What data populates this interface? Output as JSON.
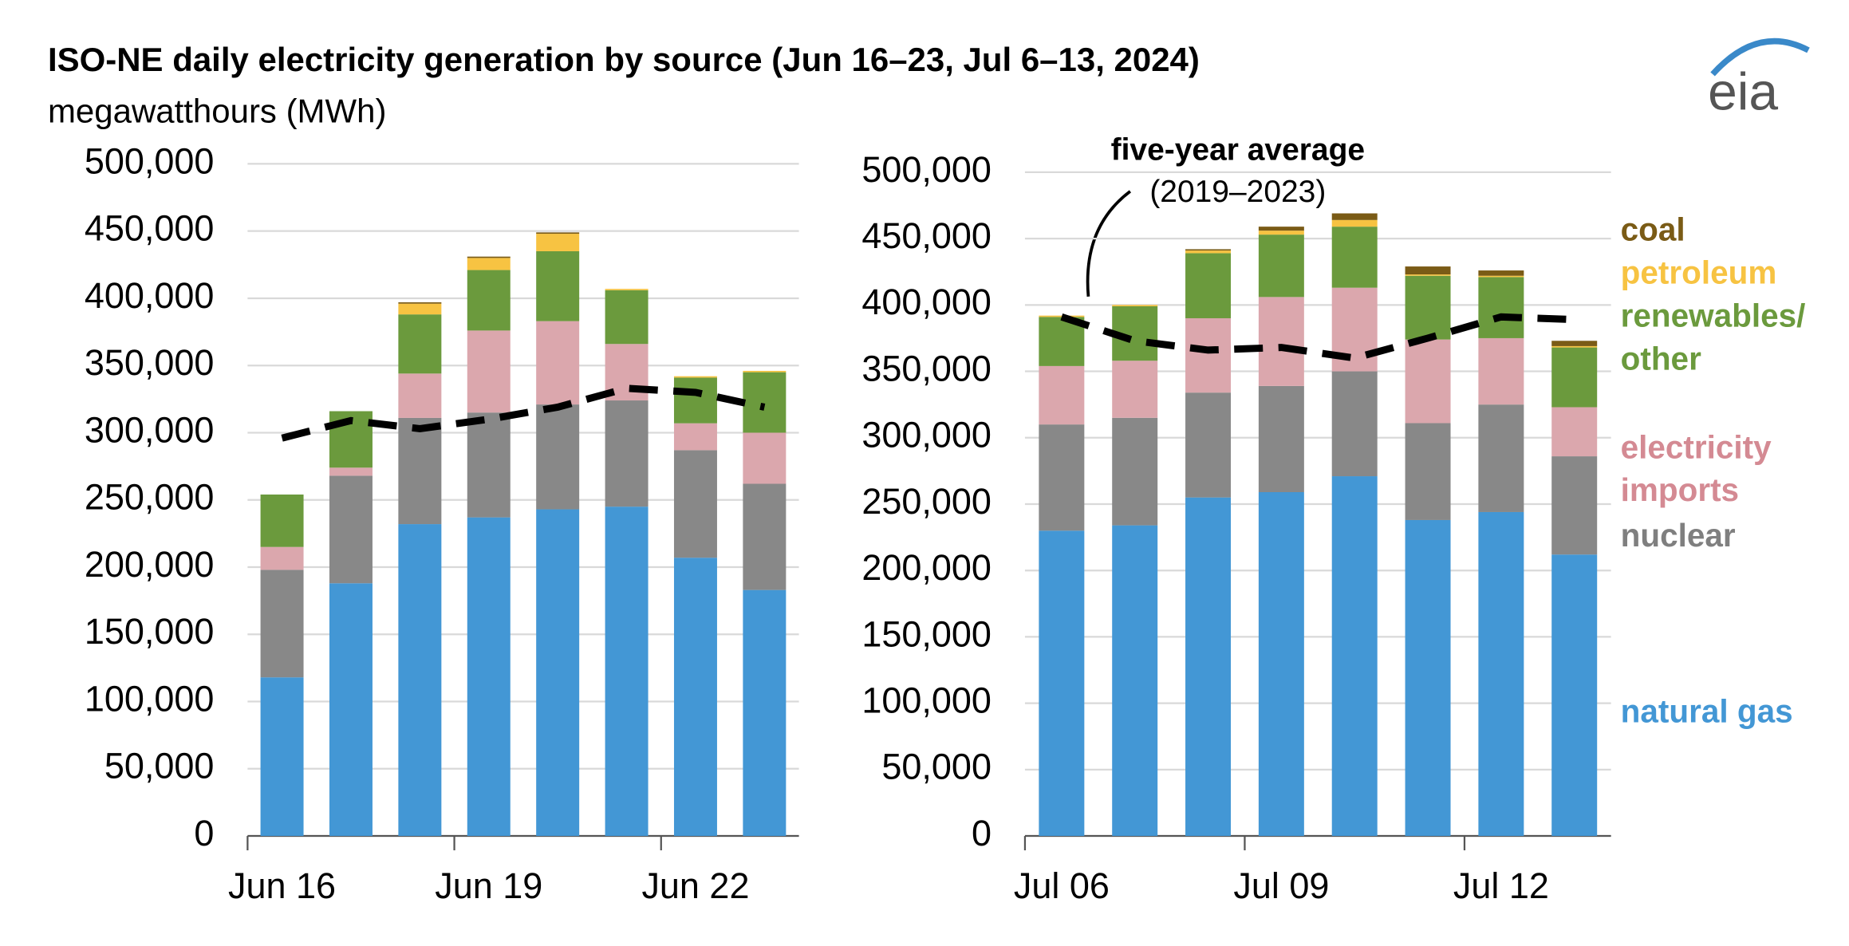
{
  "logo": "eia",
  "chart_data": [
    {
      "type": "bar",
      "stacked": true,
      "title": "ISO-NE daily electricity generation by source (Jun 16–23, Jul 6–13, 2024)",
      "y_label": "megawatthours (MWh)",
      "categories": [
        "Jun 16",
        null,
        null,
        "Jun 19",
        null,
        null,
        "Jun 22",
        null
      ],
      "ylim": [
        0,
        500000
      ],
      "yticks": [
        0,
        {
          "value": 50000,
          "label": "50,000"
        },
        {
          "value": 100000,
          "label": "100,000"
        },
        {
          "value": 150000,
          "label": "150,000"
        },
        {
          "value": 200000,
          "label": "200,000"
        },
        {
          "value": 250000,
          "label": "250,000"
        },
        {
          "value": 300000,
          "label": "300,000"
        },
        {
          "value": 350000,
          "label": "350,000"
        },
        {
          "value": 400000,
          "label": "400,000"
        },
        {
          "value": 450000,
          "label": "450,000"
        },
        {
          "value": 500000,
          "label": "500,000"
        }
      ],
      "grid": true,
      "series": [
        {
          "color": "#4397d5",
          "values": [
            118000,
            188000,
            232000,
            237000,
            243000,
            245000,
            207000,
            183000
          ]
        },
        {
          "color": "#888888",
          "values": [
            80000,
            80000,
            79000,
            78000,
            78000,
            79000,
            80000,
            79000
          ]
        },
        {
          "color": "#dba7ad",
          "values": [
            17000,
            6000,
            33000,
            61000,
            62000,
            42000,
            20000,
            38000
          ]
        },
        {
          "color": "#6b9a3d",
          "values": [
            39000,
            42000,
            44000,
            45000,
            52000,
            40000,
            34000,
            45000
          ]
        },
        {
          "color": "#f7c342",
          "values": [
            0,
            0,
            8000,
            9000,
            13000,
            1000,
            1000,
            1000
          ]
        },
        {
          "color": "#7a5b16",
          "values": [
            0,
            0,
            1000,
            1000,
            1000,
            0,
            0,
            0
          ]
        }
      ],
      "line": {
        "color": "#000000",
        "values": [
          296000,
          309000,
          303000,
          310000,
          319000,
          333000,
          330000,
          319000
        ]
      }
    },
    {
      "type": "bar",
      "stacked": true,
      "categories": [
        "Jul 06",
        null,
        null,
        "Jul 09",
        null,
        null,
        "Jul 12",
        null
      ],
      "ylim": [
        0,
        500000
      ],
      "yticks": [
        0,
        {
          "value": 50000,
          "label": "50,000"
        },
        {
          "value": 100000,
          "label": "100,000"
        },
        {
          "value": 150000,
          "label": "150,000"
        },
        {
          "value": 200000,
          "label": "200,000"
        },
        {
          "value": 250000,
          "label": "250,000"
        },
        {
          "value": 300000,
          "label": "300,000"
        },
        {
          "value": 350000,
          "label": "350,000"
        },
        {
          "value": 400000,
          "label": "400,000"
        },
        {
          "value": 450000,
          "label": "450,000"
        },
        {
          "value": 500000,
          "label": "500,000"
        }
      ],
      "grid": true,
      "series": [
        {
          "name": "natural gas",
          "color": "#4397d5",
          "values": [
            230000,
            234000,
            255000,
            259000,
            271000,
            238000,
            244000,
            212000
          ]
        },
        {
          "name": "nuclear",
          "color": "#888888",
          "values": [
            80000,
            81000,
            79000,
            80000,
            79000,
            73000,
            81000,
            74000
          ]
        },
        {
          "name": "electricity imports",
          "color": "#dba7ad",
          "values": [
            44000,
            43000,
            56000,
            67000,
            63000,
            63000,
            50000,
            37000
          ]
        },
        {
          "name": "renewables/ other",
          "color": "#6b9a3d",
          "values": [
            37000,
            41000,
            49000,
            47000,
            46000,
            48000,
            46000,
            45000
          ]
        },
        {
          "name": "petroleum",
          "color": "#f7c342",
          "values": [
            1000,
            1000,
            2000,
            3000,
            5000,
            1000,
            1000,
            1000
          ]
        },
        {
          "name": "coal",
          "color": "#7a5b16",
          "values": [
            0,
            0,
            1000,
            3000,
            5000,
            6000,
            4000,
            4000
          ]
        }
      ],
      "line": {
        "name": "five-year average",
        "annotation": "(2019–2023)",
        "color": "#000000",
        "values": [
          391000,
          373000,
          366000,
          368000,
          360000,
          375000,
          391000,
          389000
        ]
      }
    }
  ]
}
